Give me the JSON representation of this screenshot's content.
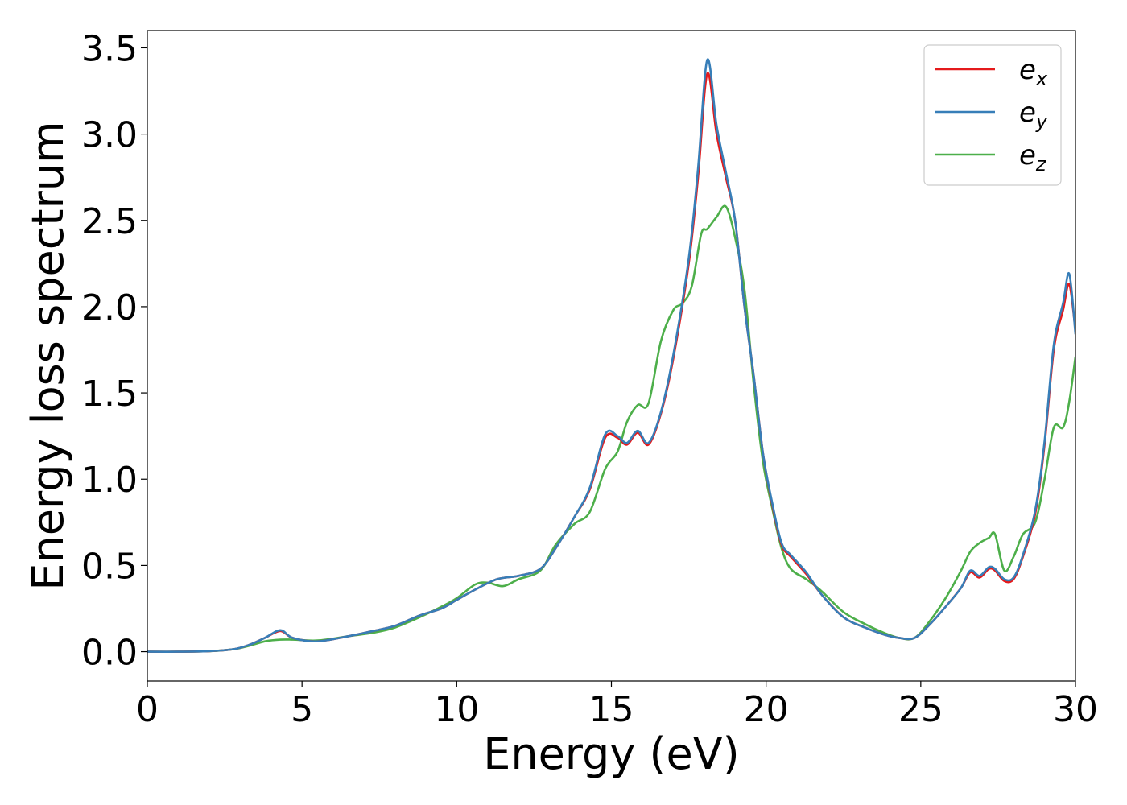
{
  "chart_data": {
    "type": "line",
    "title": "",
    "xlabel": "Energy (eV)",
    "ylabel": "Energy loss spectrum",
    "xlim": [
      0,
      30
    ],
    "ylim": [
      -0.17,
      3.6
    ],
    "xticks": [
      0,
      5,
      10,
      15,
      20,
      25,
      30
    ],
    "xtick_labels": [
      "0",
      "5",
      "10",
      "15",
      "20",
      "25",
      "30"
    ],
    "yticks": [
      0.0,
      0.5,
      1.0,
      1.5,
      2.0,
      2.5,
      3.0,
      3.5
    ],
    "ytick_labels": [
      "0.0",
      "0.5",
      "1.0",
      "1.5",
      "2.0",
      "2.5",
      "3.0",
      "3.5"
    ],
    "grid": false,
    "legend_position": "top-right",
    "series": [
      {
        "name": "e_x",
        "label_base": "e",
        "label_sub": "x",
        "color": "#e41a1c",
        "x": [
          0,
          1,
          2,
          2.8,
          3.3,
          3.8,
          4.3,
          4.7,
          5.5,
          6.5,
          7.3,
          8.0,
          8.8,
          9.5,
          10.0,
          10.6,
          11.3,
          12.0,
          12.7,
          13.2,
          13.8,
          14.3,
          14.8,
          15.2,
          15.5,
          15.85,
          16.2,
          16.6,
          17.0,
          17.5,
          17.8,
          18.1,
          18.4,
          18.7,
          19.0,
          19.3,
          19.6,
          19.9,
          20.2,
          20.5,
          20.8,
          21.3,
          21.8,
          22.5,
          23.2,
          23.8,
          24.3,
          24.8,
          25.3,
          25.8,
          26.3,
          26.6,
          26.9,
          27.2,
          27.4,
          27.7,
          28.0,
          28.3,
          28.7,
          29.0,
          29.3,
          29.6,
          29.8,
          30.0
        ],
        "y": [
          0,
          0.0,
          0.003,
          0.015,
          0.04,
          0.08,
          0.12,
          0.08,
          0.06,
          0.09,
          0.12,
          0.15,
          0.21,
          0.25,
          0.3,
          0.36,
          0.42,
          0.44,
          0.48,
          0.6,
          0.78,
          0.94,
          1.24,
          1.24,
          1.2,
          1.27,
          1.2,
          1.38,
          1.7,
          2.25,
          2.75,
          3.35,
          3.0,
          2.75,
          2.5,
          2.0,
          1.6,
          1.15,
          0.85,
          0.62,
          0.55,
          0.45,
          0.33,
          0.2,
          0.14,
          0.1,
          0.08,
          0.08,
          0.16,
          0.26,
          0.37,
          0.46,
          0.43,
          0.48,
          0.47,
          0.41,
          0.42,
          0.55,
          0.8,
          1.2,
          1.75,
          1.98,
          2.13,
          1.86
        ]
      },
      {
        "name": "e_y",
        "label_base": "e",
        "label_sub": "y",
        "color": "#377eb8",
        "x": [
          0,
          1,
          2,
          2.8,
          3.3,
          3.8,
          4.3,
          4.7,
          5.5,
          6.5,
          7.3,
          8.0,
          8.8,
          9.5,
          10.0,
          10.6,
          11.3,
          12.0,
          12.7,
          13.2,
          13.8,
          14.3,
          14.8,
          15.2,
          15.5,
          15.85,
          16.2,
          16.6,
          17.0,
          17.5,
          17.8,
          18.1,
          18.4,
          18.7,
          19.0,
          19.3,
          19.6,
          19.9,
          20.2,
          20.5,
          20.8,
          21.3,
          21.8,
          22.5,
          23.2,
          23.8,
          24.3,
          24.8,
          25.3,
          25.8,
          26.3,
          26.6,
          26.9,
          27.2,
          27.4,
          27.7,
          28.0,
          28.3,
          28.7,
          29.0,
          29.3,
          29.6,
          29.8,
          30.0
        ],
        "y": [
          0,
          0.0,
          0.003,
          0.015,
          0.04,
          0.08,
          0.125,
          0.08,
          0.06,
          0.09,
          0.12,
          0.15,
          0.21,
          0.25,
          0.3,
          0.36,
          0.42,
          0.44,
          0.48,
          0.6,
          0.78,
          0.95,
          1.26,
          1.25,
          1.21,
          1.28,
          1.21,
          1.39,
          1.72,
          2.28,
          2.8,
          3.43,
          3.05,
          2.78,
          2.5,
          2.0,
          1.6,
          1.15,
          0.86,
          0.63,
          0.56,
          0.46,
          0.33,
          0.2,
          0.14,
          0.1,
          0.08,
          0.08,
          0.16,
          0.26,
          0.37,
          0.47,
          0.44,
          0.49,
          0.48,
          0.42,
          0.43,
          0.56,
          0.82,
          1.22,
          1.78,
          2.02,
          2.19,
          1.84
        ]
      },
      {
        "name": "e_z",
        "label_base": "e",
        "label_sub": "z",
        "color": "#4daf4a",
        "x": [
          0,
          1,
          2,
          2.8,
          3.3,
          3.8,
          4.3,
          4.7,
          5.5,
          6.5,
          7.3,
          8.0,
          8.8,
          9.5,
          10.0,
          10.6,
          11.0,
          11.5,
          12.0,
          12.7,
          13.2,
          13.8,
          14.3,
          14.8,
          15.2,
          15.5,
          15.85,
          16.2,
          16.6,
          17.0,
          17.3,
          17.6,
          17.9,
          18.1,
          18.4,
          18.7,
          19.0,
          19.3,
          19.6,
          19.9,
          20.2,
          20.5,
          20.8,
          21.3,
          21.8,
          22.5,
          23.2,
          23.8,
          24.3,
          24.8,
          25.3,
          25.8,
          26.3,
          26.6,
          26.9,
          27.2,
          27.4,
          27.7,
          28.0,
          28.3,
          28.7,
          29.0,
          29.3,
          29.6,
          29.8,
          30.0
        ],
        "y": [
          0,
          0.0,
          0.003,
          0.015,
          0.035,
          0.06,
          0.07,
          0.07,
          0.065,
          0.09,
          0.11,
          0.14,
          0.2,
          0.26,
          0.31,
          0.39,
          0.4,
          0.38,
          0.42,
          0.47,
          0.62,
          0.74,
          0.81,
          1.06,
          1.16,
          1.33,
          1.43,
          1.44,
          1.8,
          1.98,
          2.02,
          2.12,
          2.42,
          2.45,
          2.52,
          2.58,
          2.4,
          2.1,
          1.55,
          1.1,
          0.83,
          0.6,
          0.48,
          0.42,
          0.35,
          0.23,
          0.16,
          0.11,
          0.08,
          0.08,
          0.18,
          0.31,
          0.47,
          0.58,
          0.63,
          0.66,
          0.68,
          0.47,
          0.55,
          0.68,
          0.75,
          1.0,
          1.3,
          1.3,
          1.45,
          1.71
        ]
      }
    ]
  }
}
